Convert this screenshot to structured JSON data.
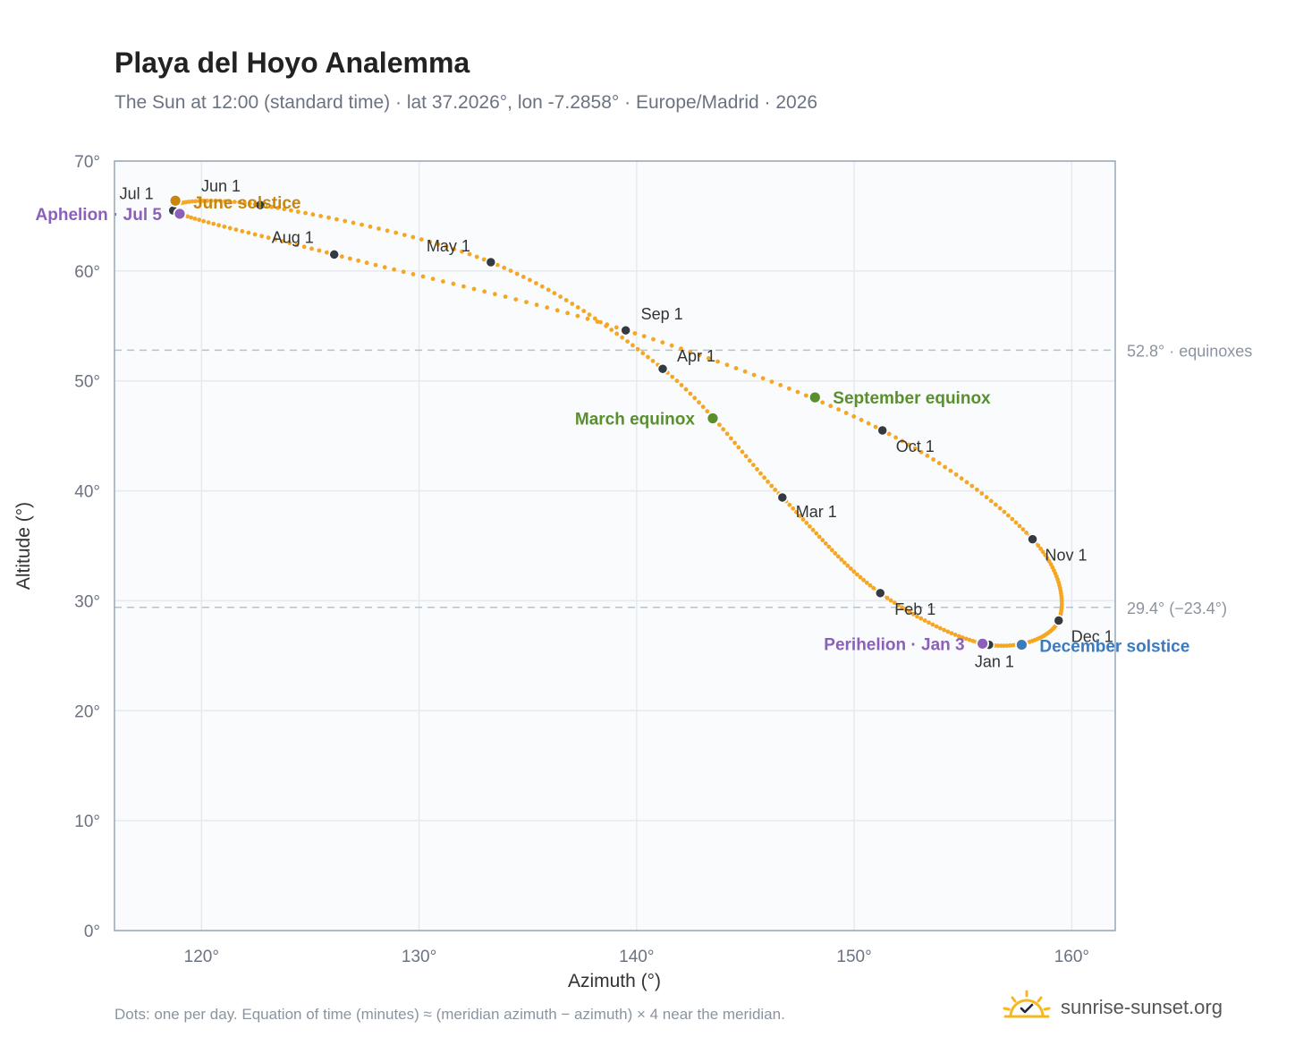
{
  "title": "Playa del Hoyo Analemma",
  "subtitle": "The Sun at 12:00 (standard time) · lat 37.2026°, lon -7.2858° · Europe/Madrid · 2026",
  "footnote": "Dots: one per day. Equation of time (minutes) ≈ (meridian azimuth − azimuth) × 4 near the meridian.",
  "brand": {
    "text": "sunrise-sunset.org",
    "icon": "sun-logo-icon",
    "icon_color": "#f5b820"
  },
  "chart_data": {
    "type": "scatter",
    "xlabel": "Azimuth (°)",
    "ylabel": "Altitude (°)",
    "xlim": [
      116,
      162
    ],
    "ylim": [
      0,
      70
    ],
    "xticks": [
      120,
      130,
      140,
      150,
      160
    ],
    "yticks": [
      0,
      10,
      20,
      30,
      40,
      50,
      60,
      70
    ],
    "tick_suffix": "°",
    "grid": true,
    "colors": {
      "path": "#f5a623",
      "month_marker": "#333a42",
      "june_solstice": "#c8860d",
      "december_solstice": "#3a7bc0",
      "equinox": "#5a8f2e",
      "apsis": "#8c60b8",
      "reference_line": "#b6c3cc",
      "plot_background": "#f9fbfd",
      "frame": "#9aa7b5"
    },
    "reference_lines": [
      {
        "y": 52.8,
        "label": "52.8° · equinoxes"
      },
      {
        "y": 29.4,
        "label": "29.4° (−23.4°)"
      }
    ],
    "path_control_points": [
      {
        "date": "Jan 1",
        "azimuth": 156.2,
        "altitude": 26.0
      },
      {
        "date": "Feb 1",
        "azimuth": 151.2,
        "altitude": 30.7
      },
      {
        "date": "Mar 1",
        "azimuth": 146.7,
        "altitude": 39.4
      },
      {
        "date": "Apr 1",
        "azimuth": 141.2,
        "altitude": 51.1
      },
      {
        "date": "May 1",
        "azimuth": 133.3,
        "altitude": 60.8
      },
      {
        "date": "Jun 1",
        "azimuth": 122.7,
        "altitude": 66.0
      },
      {
        "date": "Jul 1",
        "azimuth": 118.7,
        "altitude": 65.5
      },
      {
        "date": "Aug 1",
        "azimuth": 126.1,
        "altitude": 61.5
      },
      {
        "date": "Sep 1",
        "azimuth": 139.5,
        "altitude": 54.6
      },
      {
        "date": "Oct 1",
        "azimuth": 151.3,
        "altitude": 45.5
      },
      {
        "date": "Nov 1",
        "azimuth": 158.2,
        "altitude": 35.6
      },
      {
        "date": "Dec 1",
        "azimuth": 159.4,
        "altitude": 28.2
      }
    ],
    "month_markers": [
      {
        "label": "Jan 1",
        "azimuth": 156.2,
        "altitude": 26.0
      },
      {
        "label": "Feb 1",
        "azimuth": 151.2,
        "altitude": 30.7
      },
      {
        "label": "Mar 1",
        "azimuth": 146.7,
        "altitude": 39.4
      },
      {
        "label": "Apr 1",
        "azimuth": 141.2,
        "altitude": 51.1
      },
      {
        "label": "May 1",
        "azimuth": 133.3,
        "altitude": 60.8
      },
      {
        "label": "Jun 1",
        "azimuth": 122.7,
        "altitude": 66.0
      },
      {
        "label": "Jul 1",
        "azimuth": 118.7,
        "altitude": 65.5
      },
      {
        "label": "Aug 1",
        "azimuth": 126.1,
        "altitude": 61.5
      },
      {
        "label": "Sep 1",
        "azimuth": 139.5,
        "altitude": 54.6
      },
      {
        "label": "Oct 1",
        "azimuth": 151.3,
        "altitude": 45.5
      },
      {
        "label": "Nov 1",
        "azimuth": 158.2,
        "altitude": 35.6
      },
      {
        "label": "Dec 1",
        "azimuth": 159.4,
        "altitude": 28.2
      }
    ],
    "events": [
      {
        "label": "June solstice",
        "azimuth": 118.8,
        "altitude": 66.4,
        "color_key": "june_solstice"
      },
      {
        "label": "Aphelion · Jul 5",
        "azimuth": 119.0,
        "altitude": 65.2,
        "color_key": "apsis"
      },
      {
        "label": "March equinox",
        "azimuth": 143.5,
        "altitude": 46.6,
        "color_key": "equinox"
      },
      {
        "label": "September equinox",
        "azimuth": 148.2,
        "altitude": 48.5,
        "color_key": "equinox"
      },
      {
        "label": "Perihelion · Jan 3",
        "azimuth": 155.9,
        "altitude": 26.1,
        "color_key": "apsis"
      },
      {
        "label": "December solstice",
        "azimuth": 157.7,
        "altitude": 26.0,
        "color_key": "december_solstice"
      }
    ]
  }
}
